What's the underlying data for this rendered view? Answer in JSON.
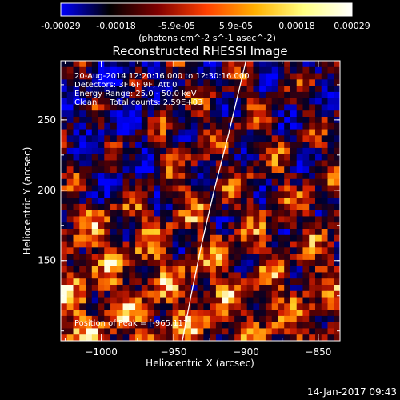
{
  "chart_data": {
    "type": "heatmap",
    "title": "Reconstructed RHESSI Image",
    "xlabel": "Heliocentric X (arcsec)",
    "ylabel": "Heliocentric Y (arcsec)",
    "xlim": [
      -1028,
      -835
    ],
    "ylim": [
      93,
      292
    ],
    "x_ticks": [
      -1000,
      -950,
      -900,
      -850
    ],
    "y_ticks": [
      150,
      200,
      250
    ],
    "colorbar": {
      "range": [
        -0.00029,
        0.00029
      ],
      "ticks": [
        "-0.00029",
        "-0.00018",
        "-5.9e-05",
        "5.9e-05",
        "0.00018",
        "0.00029"
      ],
      "label": "(photons cm^-2 s^-1 asec^-2)",
      "colors": [
        "#0000ff",
        "#000000",
        "#800000",
        "#ff4000",
        "#ffb000",
        "#ffff80",
        "#ffffff"
      ]
    },
    "annotations": {
      "time_range": "20-Aug-2014 12:20:16.000 to 12:30:16.000",
      "detectors": "Detectors: 3F 6F 9F, Att 0",
      "energy": "Energy Range: 25.0 - 50.0 keV",
      "method_counts": "Clean     Total counts: 2.59E+03",
      "peak_position": "Position of Peak = [-965,117]"
    },
    "limb_curve": [
      [
        -944,
        93
      ],
      [
        -938,
        125
      ],
      [
        -931,
        160
      ],
      [
        -922,
        200
      ],
      [
        -912,
        240
      ],
      [
        -900,
        292
      ]
    ],
    "grid": false
  },
  "footer": {
    "date_stamp": "14-Jan-2017 09:43"
  }
}
